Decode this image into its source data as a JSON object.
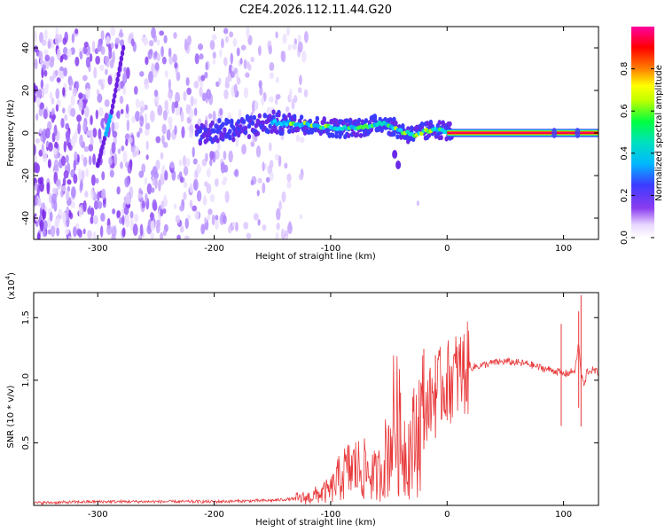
{
  "title": "C2E4.2026.112.11.44.G20",
  "chart_data": [
    {
      "type": "heatmap",
      "title": "C2E4.2026.112.11.44.G20",
      "xlabel": "Height of straight line (km)",
      "ylabel": "Frequency (Hz)",
      "xlim": [
        -355,
        130
      ],
      "ylim": [
        -50,
        50
      ],
      "x_ticks": [
        -300,
        -200,
        -100,
        0,
        100
      ],
      "y_ticks": [
        -40,
        -20,
        0,
        20,
        40
      ],
      "colorbar": {
        "label": "Normalized spectral amplitude",
        "range": [
          0,
          1
        ],
        "ticks": [
          0.0,
          0.2,
          0.4,
          0.6,
          0.8
        ],
        "tick_labels": [
          "0.0",
          "0.2",
          "0.4",
          "0.6",
          "0.8"
        ],
        "colormap": [
          "#ffffff",
          "#8b3cf0",
          "#3c3cff",
          "#00e0ff",
          "#00ff40",
          "#ffff00",
          "#ff8000",
          "#ff0000",
          "#ff00a0"
        ]
      },
      "features": [
        {
          "name": "noise-region",
          "x_range": [
            -355,
            -130
          ],
          "y_range": [
            -50,
            48
          ]
        },
        {
          "name": "diagonal-streak",
          "points": [
            [
              -300,
              -15
            ],
            [
              -288,
              10
            ],
            [
              -278,
              40
            ]
          ]
        },
        {
          "name": "main-ridge",
          "points": [
            [
              -210,
              0
            ],
            [
              -180,
              2
            ],
            [
              -150,
              5
            ],
            [
              -120,
              4
            ],
            [
              -90,
              2
            ],
            [
              -70,
              3
            ],
            [
              -55,
              5
            ],
            [
              -40,
              1
            ],
            [
              -30,
              -1
            ],
            [
              -10,
              2
            ],
            [
              0,
              1
            ],
            [
              130,
              0
            ]
          ]
        },
        {
          "name": "stable-line",
          "x_range": [
            0,
            130
          ],
          "y": 0,
          "amplitude": 1.0
        },
        {
          "name": "secondary-blob",
          "points": [
            [
              -45,
              -10
            ],
            [
              -42,
              -15
            ]
          ]
        }
      ]
    },
    {
      "type": "line",
      "xlabel": "Height of straight line (km)",
      "ylabel": "SNR (10 * v/v)",
      "exponent_label": "(x10",
      "exponent_value": "4",
      "exponent_close": ")",
      "xlim": [
        -355,
        130
      ],
      "ylim": [
        0,
        1.7
      ],
      "x_ticks": [
        -300,
        -200,
        -100,
        0,
        100
      ],
      "y_ticks": [
        0.5,
        1.0,
        1.5
      ],
      "y_tick_labels": [
        "0.5",
        "1.0",
        "1.5"
      ],
      "series": [
        {
          "color": "#e8383a",
          "x": [
            -355,
            -300,
            -250,
            -200,
            -150,
            -120,
            -100,
            -90,
            -80,
            -70,
            -60,
            -50,
            -45,
            -40,
            -35,
            -30,
            -25,
            -20,
            -15,
            -10,
            -5,
            0,
            5,
            10,
            20,
            30,
            40,
            50,
            60,
            70,
            80,
            90,
            95,
            100,
            105,
            110,
            113,
            115,
            118,
            120,
            125,
            130
          ],
          "y": [
            0.02,
            0.03,
            0.03,
            0.03,
            0.04,
            0.06,
            0.12,
            0.25,
            0.3,
            0.28,
            0.22,
            0.45,
            0.7,
            0.55,
            0.42,
            0.48,
            0.6,
            0.75,
            0.82,
            0.9,
            0.95,
            0.98,
            1.02,
            1.05,
            1.1,
            1.12,
            1.14,
            1.15,
            1.14,
            1.13,
            1.1,
            1.08,
            1.07,
            1.05,
            1.06,
            1.08,
            1.3,
            1.05,
            0.95,
            1.07,
            1.08,
            1.06
          ],
          "peak_x": [
            -40,
            -20,
            -10,
            98,
            113,
            115
          ],
          "peak_y": [
            0.9,
            1.25,
            1.2,
            1.45,
            1.55,
            1.68
          ]
        }
      ]
    }
  ]
}
